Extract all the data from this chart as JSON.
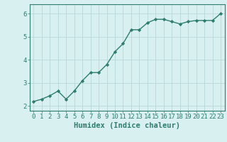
{
  "x": [
    0,
    1,
    2,
    3,
    4,
    5,
    6,
    7,
    8,
    9,
    10,
    11,
    12,
    13,
    14,
    15,
    16,
    17,
    18,
    19,
    20,
    21,
    22,
    23
  ],
  "y": [
    2.2,
    2.3,
    2.45,
    2.65,
    2.3,
    2.65,
    3.1,
    3.45,
    3.45,
    3.8,
    4.35,
    4.7,
    5.3,
    5.3,
    5.6,
    5.75,
    5.75,
    5.65,
    5.55,
    5.65,
    5.7,
    5.7,
    5.7,
    6.0
  ],
  "line_color": "#2e7d6e",
  "marker": "D",
  "marker_size": 2.2,
  "bg_color": "#d8f0f0",
  "grid_color": "#b8d8d8",
  "xlabel": "Humidex (Indice chaleur)",
  "ylim": [
    1.8,
    6.4
  ],
  "xlim": [
    -0.5,
    23.5
  ],
  "yticks": [
    2,
    3,
    4,
    5,
    6
  ],
  "xticks": [
    0,
    1,
    2,
    3,
    4,
    5,
    6,
    7,
    8,
    9,
    10,
    11,
    12,
    13,
    14,
    15,
    16,
    17,
    18,
    19,
    20,
    21,
    22,
    23
  ],
  "xlabel_fontsize": 7.5,
  "tick_fontsize": 6.5,
  "line_width": 1.0
}
